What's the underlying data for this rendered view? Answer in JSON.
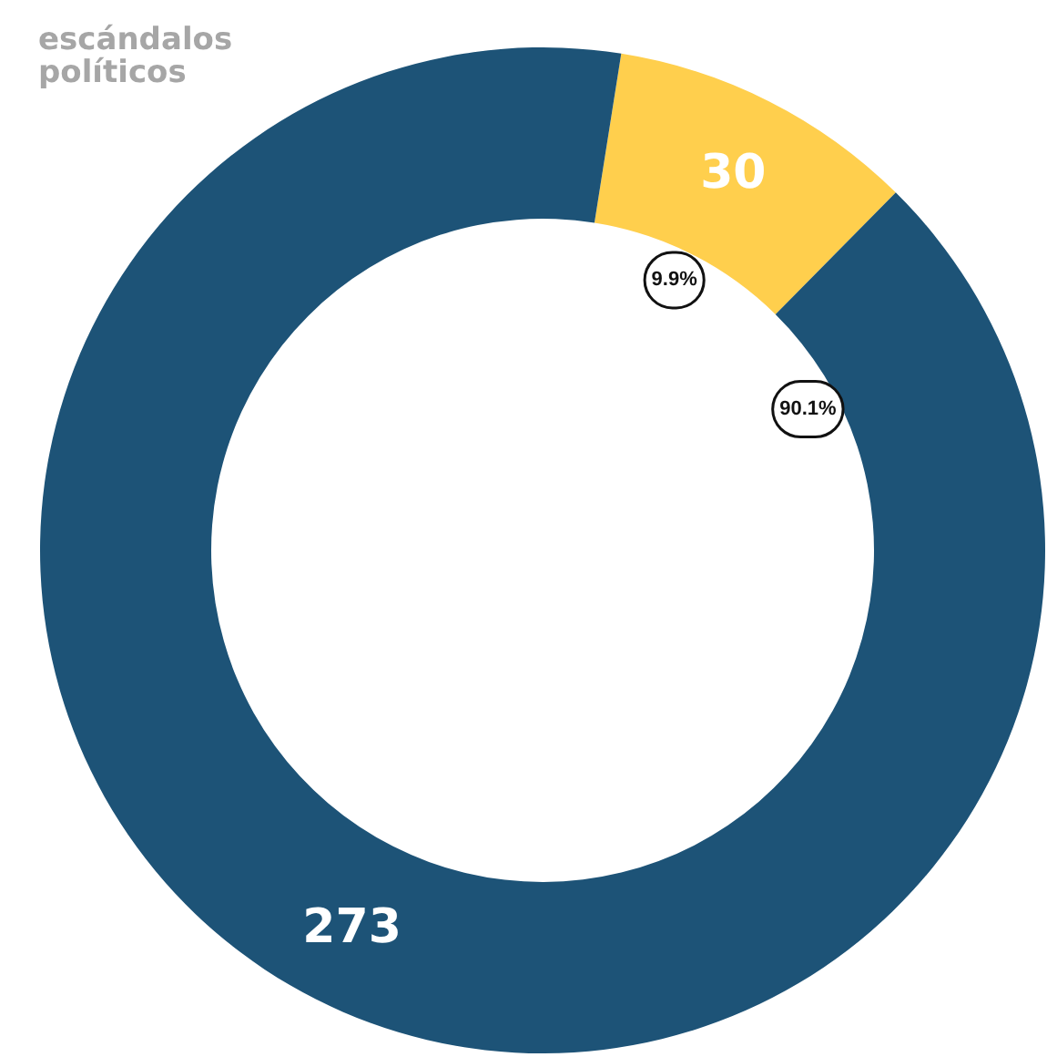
{
  "chart_data": {
    "type": "donut",
    "title": "escándalos políticos",
    "categories": [
      null,
      null
    ],
    "values": [
      30,
      273
    ],
    "colors": [
      "#ffcf4d",
      "#1d5377"
    ],
    "data_labels": true,
    "annotations": [
      "9.9%",
      "90.1%"
    ]
  }
}
